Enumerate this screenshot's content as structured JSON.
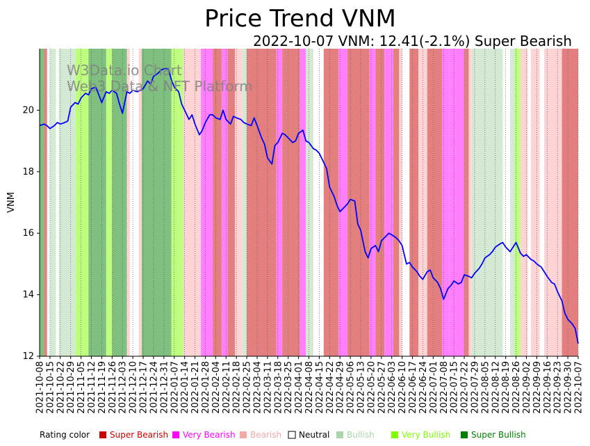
{
  "chart_data": {
    "type": "line",
    "title": "Price Trend VNM",
    "subtitle": "2022-10-07 VNM: 12.41(-2.1%) Super Bearish",
    "ylabel": "VNM",
    "xlabel": "",
    "ylim": [
      12,
      22
    ],
    "yticks": [
      12,
      14,
      16,
      18,
      20
    ],
    "x_start": "2021-10-08",
    "x_end": "2022-10-07",
    "xticks": [
      "2021-10-08",
      "2021-10-15",
      "2021-10-22",
      "2021-10-29",
      "2021-11-05",
      "2021-11-12",
      "2021-11-19",
      "2021-11-26",
      "2021-12-03",
      "2021-12-10",
      "2021-12-17",
      "2021-12-24",
      "2021-12-31",
      "2022-01-07",
      "2022-01-14",
      "2022-01-21",
      "2022-01-28",
      "2022-02-04",
      "2022-02-11",
      "2022-02-18",
      "2022-02-25",
      "2022-03-04",
      "2022-03-11",
      "2022-03-18",
      "2022-03-25",
      "2022-04-01",
      "2022-04-08",
      "2022-04-15",
      "2022-04-22",
      "2022-04-29",
      "2022-05-06",
      "2022-05-13",
      "2022-05-20",
      "2022-05-27",
      "2022-06-03",
      "2022-06-10",
      "2022-06-17",
      "2022-06-24",
      "2022-07-01",
      "2022-07-08",
      "2022-07-15",
      "2022-07-22",
      "2022-07-29",
      "2022-08-05",
      "2022-08-12",
      "2022-08-19",
      "2022-08-26",
      "2022-09-02",
      "2022-09-09",
      "2022-09-16",
      "2022-09-23",
      "2022-09-30",
      "2022-10-07"
    ],
    "series": [
      {
        "name": "VNM",
        "color": "#0000ff",
        "points": [
          [
            "2021-10-08",
            19.5
          ],
          [
            "2021-10-11",
            19.55
          ],
          [
            "2021-10-13",
            19.5
          ],
          [
            "2021-10-15",
            19.4
          ],
          [
            "2021-10-18",
            19.5
          ],
          [
            "2021-10-20",
            19.6
          ],
          [
            "2021-10-22",
            19.55
          ],
          [
            "2021-10-25",
            19.6
          ],
          [
            "2021-10-27",
            19.65
          ],
          [
            "2021-10-29",
            20.1
          ],
          [
            "2021-11-01",
            20.25
          ],
          [
            "2021-11-03",
            20.2
          ],
          [
            "2021-11-05",
            20.4
          ],
          [
            "2021-11-08",
            20.55
          ],
          [
            "2021-11-10",
            20.5
          ],
          [
            "2021-11-12",
            20.7
          ],
          [
            "2021-11-15",
            20.75
          ],
          [
            "2021-11-17",
            20.5
          ],
          [
            "2021-11-19",
            20.25
          ],
          [
            "2021-11-22",
            20.6
          ],
          [
            "2021-11-24",
            20.55
          ],
          [
            "2021-11-26",
            20.65
          ],
          [
            "2021-11-29",
            20.55
          ],
          [
            "2021-12-01",
            20.2
          ],
          [
            "2021-12-03",
            19.9
          ],
          [
            "2021-12-06",
            20.6
          ],
          [
            "2021-12-08",
            20.55
          ],
          [
            "2021-12-10",
            20.65
          ],
          [
            "2021-12-13",
            20.6
          ],
          [
            "2021-12-15",
            20.65
          ],
          [
            "2021-12-17",
            20.7
          ],
          [
            "2021-12-20",
            20.95
          ],
          [
            "2021-12-22",
            20.85
          ],
          [
            "2021-12-24",
            21.1
          ],
          [
            "2021-12-27",
            21.2
          ],
          [
            "2021-12-29",
            21.3
          ],
          [
            "2021-12-31",
            21.35
          ],
          [
            "2022-01-03",
            21.35
          ],
          [
            "2022-01-05",
            21.0
          ],
          [
            "2022-01-07",
            20.75
          ],
          [
            "2022-01-10",
            20.6
          ],
          [
            "2022-01-12",
            20.2
          ],
          [
            "2022-01-14",
            20.0
          ],
          [
            "2022-01-17",
            19.7
          ],
          [
            "2022-01-19",
            19.85
          ],
          [
            "2022-01-21",
            19.55
          ],
          [
            "2022-01-24",
            19.2
          ],
          [
            "2022-01-26",
            19.35
          ],
          [
            "2022-01-28",
            19.6
          ],
          [
            "2022-01-31",
            19.85
          ],
          [
            "2022-02-02",
            19.85
          ],
          [
            "2022-02-04",
            19.75
          ],
          [
            "2022-02-07",
            19.7
          ],
          [
            "2022-02-09",
            20.0
          ],
          [
            "2022-02-11",
            19.7
          ],
          [
            "2022-02-14",
            19.55
          ],
          [
            "2022-02-16",
            19.8
          ],
          [
            "2022-02-18",
            19.75
          ],
          [
            "2022-02-21",
            19.7
          ],
          [
            "2022-02-23",
            19.6
          ],
          [
            "2022-02-25",
            19.55
          ],
          [
            "2022-02-28",
            19.5
          ],
          [
            "2022-03-02",
            19.75
          ],
          [
            "2022-03-04",
            19.5
          ],
          [
            "2022-03-07",
            19.1
          ],
          [
            "2022-03-09",
            18.9
          ],
          [
            "2022-03-11",
            18.45
          ],
          [
            "2022-03-14",
            18.25
          ],
          [
            "2022-03-16",
            18.85
          ],
          [
            "2022-03-18",
            18.95
          ],
          [
            "2022-03-21",
            19.25
          ],
          [
            "2022-03-23",
            19.2
          ],
          [
            "2022-03-25",
            19.1
          ],
          [
            "2022-03-28",
            18.95
          ],
          [
            "2022-03-30",
            19.0
          ],
          [
            "2022-04-01",
            19.25
          ],
          [
            "2022-04-04",
            19.35
          ],
          [
            "2022-04-06",
            19.0
          ],
          [
            "2022-04-08",
            18.95
          ],
          [
            "2022-04-11",
            18.75
          ],
          [
            "2022-04-13",
            18.7
          ],
          [
            "2022-04-15",
            18.6
          ],
          [
            "2022-04-18",
            18.3
          ],
          [
            "2022-04-20",
            18.1
          ],
          [
            "2022-04-22",
            17.5
          ],
          [
            "2022-04-25",
            17.2
          ],
          [
            "2022-04-27",
            16.9
          ],
          [
            "2022-04-29",
            16.7
          ],
          [
            "2022-05-04",
            16.95
          ],
          [
            "2022-05-06",
            17.1
          ],
          [
            "2022-05-09",
            17.05
          ],
          [
            "2022-05-11",
            16.3
          ],
          [
            "2022-05-13",
            16.1
          ],
          [
            "2022-05-16",
            15.4
          ],
          [
            "2022-05-18",
            15.2
          ],
          [
            "2022-05-20",
            15.5
          ],
          [
            "2022-05-23",
            15.6
          ],
          [
            "2022-05-25",
            15.4
          ],
          [
            "2022-05-27",
            15.75
          ],
          [
            "2022-05-30",
            15.9
          ],
          [
            "2022-06-01",
            16.0
          ],
          [
            "2022-06-03",
            15.95
          ],
          [
            "2022-06-06",
            15.85
          ],
          [
            "2022-06-08",
            15.75
          ],
          [
            "2022-06-10",
            15.6
          ],
          [
            "2022-06-13",
            15.0
          ],
          [
            "2022-06-15",
            15.05
          ],
          [
            "2022-06-17",
            14.9
          ],
          [
            "2022-06-20",
            14.75
          ],
          [
            "2022-06-22",
            14.6
          ],
          [
            "2022-06-24",
            14.5
          ],
          [
            "2022-06-27",
            14.75
          ],
          [
            "2022-06-29",
            14.8
          ],
          [
            "2022-07-01",
            14.55
          ],
          [
            "2022-07-04",
            14.4
          ],
          [
            "2022-07-06",
            14.2
          ],
          [
            "2022-07-08",
            13.85
          ],
          [
            "2022-07-11",
            14.2
          ],
          [
            "2022-07-13",
            14.3
          ],
          [
            "2022-07-15",
            14.45
          ],
          [
            "2022-07-18",
            14.35
          ],
          [
            "2022-07-20",
            14.4
          ],
          [
            "2022-07-22",
            14.65
          ],
          [
            "2022-07-25",
            14.6
          ],
          [
            "2022-07-27",
            14.55
          ],
          [
            "2022-07-29",
            14.7
          ],
          [
            "2022-08-01",
            14.85
          ],
          [
            "2022-08-03",
            15.0
          ],
          [
            "2022-08-05",
            15.2
          ],
          [
            "2022-08-08",
            15.3
          ],
          [
            "2022-08-10",
            15.4
          ],
          [
            "2022-08-12",
            15.55
          ],
          [
            "2022-08-15",
            15.65
          ],
          [
            "2022-08-17",
            15.7
          ],
          [
            "2022-08-19",
            15.55
          ],
          [
            "2022-08-22",
            15.4
          ],
          [
            "2022-08-24",
            15.55
          ],
          [
            "2022-08-26",
            15.7
          ],
          [
            "2022-08-29",
            15.35
          ],
          [
            "2022-08-31",
            15.25
          ],
          [
            "2022-09-02",
            15.3
          ],
          [
            "2022-09-05",
            15.15
          ],
          [
            "2022-09-07",
            15.1
          ],
          [
            "2022-09-09",
            15.0
          ],
          [
            "2022-09-12",
            14.9
          ],
          [
            "2022-09-14",
            14.75
          ],
          [
            "2022-09-16",
            14.6
          ],
          [
            "2022-09-19",
            14.4
          ],
          [
            "2022-09-21",
            14.35
          ],
          [
            "2022-09-23",
            14.1
          ],
          [
            "2022-09-26",
            13.8
          ],
          [
            "2022-09-28",
            13.4
          ],
          [
            "2022-09-30",
            13.2
          ],
          [
            "2022-10-03",
            13.05
          ],
          [
            "2022-10-05",
            12.9
          ],
          [
            "2022-10-07",
            12.41
          ]
        ]
      }
    ],
    "bands": [
      [
        "2021-10-08",
        "2021-10-11",
        "super_bullish"
      ],
      [
        "2021-10-11",
        "2021-10-13",
        "super_bearish"
      ],
      [
        "2021-10-15",
        "2021-10-19",
        "bullish"
      ],
      [
        "2021-10-21",
        "2021-10-27",
        "bullish"
      ],
      [
        "2021-10-27",
        "2021-11-01",
        "bullish"
      ],
      [
        "2021-11-01",
        "2021-11-04",
        "very_bullish"
      ],
      [
        "2021-11-04",
        "2021-11-10",
        "very_bullish"
      ],
      [
        "2021-11-10",
        "2021-11-22",
        "super_bullish"
      ],
      [
        "2021-11-22",
        "2021-11-26",
        "very_bullish"
      ],
      [
        "2021-11-26",
        "2021-12-06",
        "super_bullish"
      ],
      [
        "2021-12-06",
        "2021-12-08",
        "bearish"
      ],
      [
        "2021-12-14",
        "2021-12-16",
        "bearish"
      ],
      [
        "2021-12-16",
        "2022-01-05",
        "super_bullish"
      ],
      [
        "2022-01-05",
        "2022-01-13",
        "very_bullish"
      ],
      [
        "2022-01-13",
        "2022-01-25",
        "bearish"
      ],
      [
        "2022-01-25",
        "2022-02-02",
        "very_bearish"
      ],
      [
        "2022-02-02",
        "2022-02-08",
        "super_bearish"
      ],
      [
        "2022-02-08",
        "2022-02-12",
        "very_bearish"
      ],
      [
        "2022-02-12",
        "2022-02-17",
        "super_bearish"
      ],
      [
        "2022-02-17",
        "2022-02-22",
        "bearish"
      ],
      [
        "2022-02-22",
        "2022-02-25",
        "bullish"
      ],
      [
        "2022-02-25",
        "2022-03-17",
        "super_bearish"
      ],
      [
        "2022-03-17",
        "2022-03-21",
        "very_bearish"
      ],
      [
        "2022-03-21",
        "2022-03-25",
        "super_bearish"
      ],
      [
        "2022-03-25",
        "2022-04-02",
        "super_bearish"
      ],
      [
        "2022-04-02",
        "2022-04-06",
        "very_bearish"
      ],
      [
        "2022-04-06",
        "2022-04-11",
        "bullish"
      ],
      [
        "2022-04-18",
        "2022-04-28",
        "super_bearish"
      ],
      [
        "2022-04-28",
        "2022-05-04",
        "very_bearish"
      ],
      [
        "2022-05-04",
        "2022-05-09",
        "super_bearish"
      ],
      [
        "2022-05-09",
        "2022-05-19",
        "super_bearish"
      ],
      [
        "2022-05-19",
        "2022-05-23",
        "very_bearish"
      ],
      [
        "2022-05-23",
        "2022-05-29",
        "super_bearish"
      ],
      [
        "2022-05-29",
        "2022-06-04",
        "very_bearish"
      ],
      [
        "2022-06-04",
        "2022-06-08",
        "super_bearish"
      ],
      [
        "2022-06-08",
        "2022-06-10",
        "bearish"
      ],
      [
        "2022-06-15",
        "2022-06-21",
        "super_bearish"
      ],
      [
        "2022-06-21",
        "2022-06-27",
        "bearish"
      ],
      [
        "2022-06-27",
        "2022-07-01",
        "super_bearish"
      ],
      [
        "2022-07-01",
        "2022-07-07",
        "super_bearish"
      ],
      [
        "2022-07-07",
        "2022-07-12",
        "very_bearish"
      ],
      [
        "2022-07-12",
        "2022-07-22",
        "very_bearish"
      ],
      [
        "2022-07-22",
        "2022-07-25",
        "super_bearish"
      ],
      [
        "2022-07-25",
        "2022-07-27",
        "bearish"
      ],
      [
        "2022-07-27",
        "2022-08-17",
        "bullish"
      ],
      [
        "2022-08-22",
        "2022-08-25",
        "bullish"
      ],
      [
        "2022-08-25",
        "2022-08-29",
        "very_bullish"
      ],
      [
        "2022-08-29",
        "2022-09-03",
        "bearish"
      ],
      [
        "2022-09-05",
        "2022-09-11",
        "bearish"
      ],
      [
        "2022-09-14",
        "2022-09-26",
        "bearish"
      ],
      [
        "2022-09-26",
        "2022-10-07",
        "super_bearish"
      ]
    ],
    "gridlines": "vertical dotted at each x tick",
    "legend_placement": "bottom"
  },
  "legend": {
    "label": "Rating color",
    "items": [
      {
        "key": "super_bearish",
        "label": "Super Bearish",
        "swatch": "#cc0000",
        "fill": "#e37f7f"
      },
      {
        "key": "very_bearish",
        "label": "Very Bearish",
        "swatch": "#ff00ff",
        "fill": "#ff7fff"
      },
      {
        "key": "bearish",
        "label": "Bearish",
        "swatch": "#f4a9a9",
        "fill": "#ffd4d4"
      },
      {
        "key": "neutral",
        "label": "Neutral",
        "swatch": "#ffffff",
        "fill": "#ffffff"
      },
      {
        "key": "bullish",
        "label": "Bullish",
        "swatch": "#a9d6a9",
        "fill": "#d4ead4"
      },
      {
        "key": "very_bullish",
        "label": "Very Bullish",
        "swatch": "#7fff00",
        "fill": "#bfff7f"
      },
      {
        "key": "super_bullish",
        "label": "Super Bullish",
        "swatch": "#008000",
        "fill": "#7fbf7f"
      }
    ]
  },
  "watermark": {
    "line1": "W3Data.io Chart",
    "line2": "Web3 Data & NFT Platform"
  },
  "colors": {
    "line": "#0000ff",
    "axis": "#000000",
    "grid": "#555555",
    "watermark": "#808080"
  }
}
